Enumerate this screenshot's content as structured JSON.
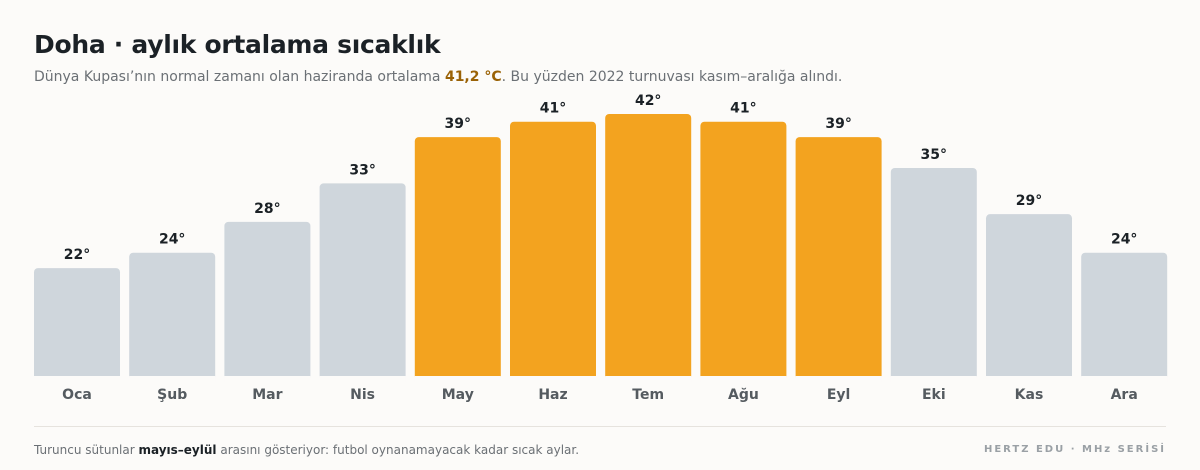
{
  "header": {
    "title": "Doha · aylık ortalama sıcaklık",
    "subtitle_pre": "Dünya Kupası’nın normal zamanı olan haziranda ortalama ",
    "subtitle_value": "41,2 °C",
    "subtitle_post": ". Bu yüzden 2022 turnuvası kasım–aralığa alındı."
  },
  "footer": {
    "note_pre": "Turuncu sütunlar ",
    "note_bold": "mayıs–eylül",
    "note_post": " arasını gösteriyor: futbol oynanamayacak kadar sıcak aylar.",
    "brand": "HERTZ EDU · MHz SERİSİ"
  },
  "colors": {
    "hot": "#f3a31f",
    "normal": "#cfd6dc",
    "highlight_text": "#9a6206"
  },
  "chart_data": {
    "type": "bar",
    "categories": [
      "Oca",
      "Şub",
      "Mar",
      "Nis",
      "May",
      "Haz",
      "Tem",
      "Ağu",
      "Eyl",
      "Eki",
      "Kas",
      "Ara"
    ],
    "values": [
      22,
      24,
      28,
      33,
      39,
      41,
      42,
      41,
      39,
      35,
      29,
      24
    ],
    "value_labels": [
      "22°",
      "24°",
      "28°",
      "33°",
      "39°",
      "41°",
      "42°",
      "41°",
      "39°",
      "35°",
      "29°",
      "24°"
    ],
    "highlighted": [
      false,
      false,
      false,
      false,
      true,
      true,
      true,
      true,
      true,
      false,
      false,
      false
    ],
    "ylim": [
      8,
      42
    ],
    "grid": false
  }
}
